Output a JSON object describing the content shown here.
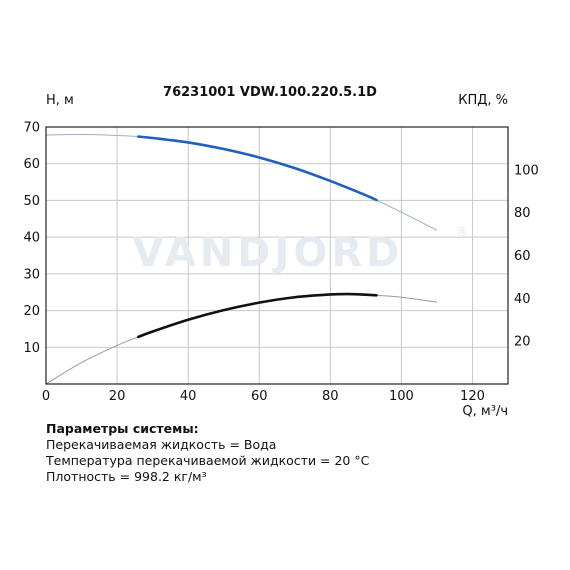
{
  "chart_data": {
    "type": "line",
    "title": "76231001 VDW.100.220.5.1D",
    "xlabel": "Q, м³/ч",
    "ylabel_left": "H, м",
    "ylabel_right": "КПД, %",
    "xlim": [
      0,
      130
    ],
    "xticks": [
      0,
      20,
      40,
      60,
      80,
      100,
      120
    ],
    "ylim_left": [
      0,
      70
    ],
    "yticks_left": [
      10,
      20,
      30,
      40,
      50,
      60,
      70
    ],
    "ylim_right": [
      0,
      120
    ],
    "yticks_right": [
      20,
      40,
      60,
      80,
      100
    ],
    "grid": true,
    "colors": {
      "head": "#1f5fbf",
      "efficiency": "#111111",
      "extended": "#9aaed0"
    },
    "series": [
      {
        "key": "head",
        "axis": "left",
        "x": [
          0,
          10,
          20,
          26,
          30,
          40,
          50,
          60,
          70,
          80,
          90,
          93,
          100,
          110
        ],
        "y": [
          67.8,
          68.0,
          67.7,
          67.4,
          67.0,
          65.8,
          64.0,
          61.7,
          58.8,
          55.3,
          51.4,
          50.1,
          46.8,
          41.9
        ],
        "operating_range": [
          26,
          93
        ]
      },
      {
        "key": "efficiency",
        "axis": "right",
        "x": [
          0,
          10,
          20,
          26,
          30,
          40,
          50,
          60,
          70,
          80,
          85,
          90,
          93,
          100,
          110
        ],
        "y": [
          0,
          10,
          18,
          22,
          24.5,
          30,
          34.5,
          38,
          40.5,
          41.8,
          42,
          41.7,
          41.4,
          40.5,
          38.2
        ],
        "operating_range": [
          26,
          93
        ]
      }
    ]
  },
  "watermark": "VANDJORD",
  "watermark_mark": "®",
  "params": {
    "heading": "Параметры системы:",
    "lines": [
      "Перекачиваемая жидкость = Вода",
      "Температура перекачиваемой жидкости = 20 °C",
      "Плотность = 998.2 кг/м³"
    ]
  }
}
